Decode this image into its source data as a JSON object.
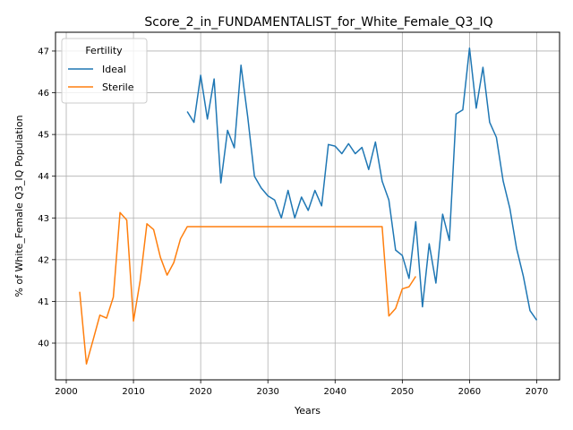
{
  "chart_data": {
    "type": "line",
    "title": "Score_2_in_FUNDAMENTALIST_for_White_Female_Q3_IQ",
    "xlabel": "Years",
    "ylabel": "% of White_Female Q3_IQ Population",
    "xlim": [
      1998.4,
      2073.4
    ],
    "ylim": [
      39.12,
      47.45
    ],
    "xticks": [
      2000,
      2010,
      2020,
      2030,
      2040,
      2050,
      2060,
      2070
    ],
    "yticks": [
      40,
      41,
      42,
      43,
      44,
      45,
      46,
      47
    ],
    "grid": true,
    "legend": {
      "title": "Fertility",
      "position": "top-left"
    },
    "series": [
      {
        "name": "Ideal",
        "color": "#1f77b4",
        "x": [
          2018,
          2019,
          2020,
          2021,
          2022,
          2023,
          2024,
          2025,
          2026,
          2027,
          2028,
          2029,
          2030,
          2031,
          2032,
          2033,
          2034,
          2035,
          2036,
          2037,
          2038,
          2039,
          2040,
          2041,
          2042,
          2043,
          2044,
          2045,
          2046,
          2047,
          2048,
          2049,
          2050,
          2051,
          2052,
          2053,
          2054,
          2055,
          2056,
          2057,
          2058,
          2059,
          2060,
          2061,
          2062,
          2063,
          2064,
          2065,
          2066,
          2067,
          2068,
          2069,
          2070
        ],
        "y": [
          45.55,
          45.29,
          46.42,
          45.37,
          46.33,
          43.84,
          45.1,
          44.68,
          46.66,
          45.42,
          44.0,
          43.72,
          43.53,
          43.43,
          43.0,
          43.66,
          43.0,
          43.5,
          43.18,
          43.66,
          43.29,
          44.76,
          44.72,
          44.54,
          44.78,
          44.54,
          44.69,
          44.16,
          44.82,
          43.88,
          43.43,
          42.23,
          42.1,
          41.55,
          42.91,
          40.87,
          42.38,
          41.44,
          43.09,
          42.46,
          45.49,
          45.59,
          47.07,
          45.63,
          46.61,
          45.29,
          44.93,
          43.89,
          43.23,
          42.27,
          41.61,
          40.78,
          40.55
        ]
      },
      {
        "name": "Sterile",
        "color": "#ff7f0e",
        "x": [
          2002,
          2003,
          2004,
          2005,
          2006,
          2007,
          2008,
          2009,
          2010,
          2011,
          2012,
          2013,
          2014,
          2015,
          2016,
          2017,
          2018,
          2019,
          2020,
          2021,
          2022,
          2023,
          2024,
          2025,
          2026,
          2027,
          2028,
          2029,
          2030,
          2031,
          2032,
          2033,
          2034,
          2035,
          2036,
          2037,
          2038,
          2039,
          2040,
          2041,
          2042,
          2043,
          2044,
          2045,
          2046,
          2047,
          2048,
          2049,
          2050,
          2051,
          2052
        ],
        "y": [
          41.23,
          39.5,
          40.08,
          40.67,
          40.6,
          41.1,
          43.13,
          42.95,
          40.53,
          41.5,
          42.86,
          42.72,
          42.06,
          41.63,
          41.93,
          42.5,
          42.79,
          42.79,
          42.79,
          42.79,
          42.79,
          42.79,
          42.79,
          42.79,
          42.79,
          42.79,
          42.79,
          42.79,
          42.79,
          42.79,
          42.79,
          42.79,
          42.79,
          42.79,
          42.79,
          42.79,
          42.79,
          42.79,
          42.79,
          42.79,
          42.79,
          42.79,
          42.79,
          42.79,
          42.79,
          42.79,
          40.65,
          40.83,
          41.3,
          41.35,
          41.6
        ]
      }
    ]
  }
}
